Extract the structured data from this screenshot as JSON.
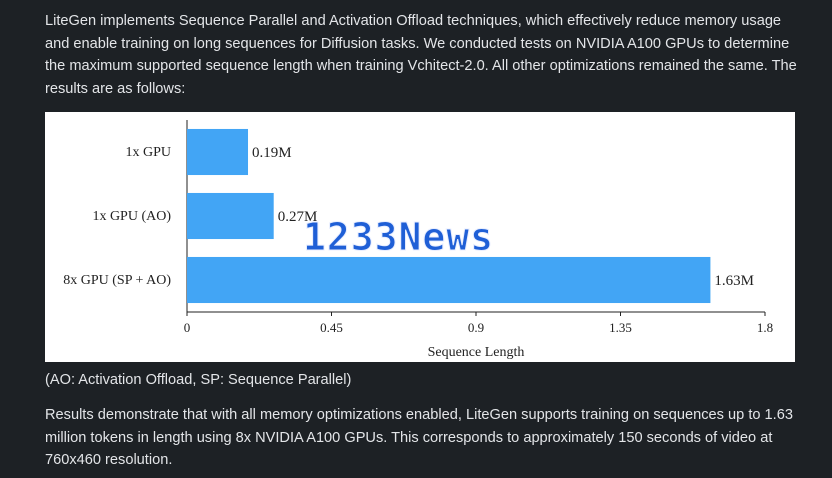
{
  "text": {
    "intro": "LiteGen implements Sequence Parallel and Activation Offload techniques, which effectively reduce memory usage and enable training on long sequences for Diffusion tasks. We conducted tests on NVIDIA A100 GPUs to determine the maximum supported sequence length when training Vchitect-2.0. All other optimizations remained the same. The results are as follows:",
    "caption": "(AO: Activation Offload, SP: Sequence Parallel)",
    "results": "Results demonstrate that with all memory optimizations enabled, LiteGen supports training on sequences up to 1.63 million tokens in length using 8x NVIDIA A100 GPUs. This corresponds to approximately 150 seconds of video at 760x460 resolution."
  },
  "watermark": "1233News",
  "colors": {
    "page_background": "#1d2125",
    "bar": "#42a5f5",
    "watermark": "#1f5fd6"
  },
  "chart_data": {
    "type": "bar",
    "orientation": "horizontal",
    "categories": [
      "1x GPU",
      "1x GPU (AO)",
      "8x GPU (SP + AO)"
    ],
    "values": [
      0.19,
      0.27,
      1.63
    ],
    "data_labels": [
      "0.19M",
      "0.27M",
      "1.63M"
    ],
    "xlabel": "Sequence Length",
    "ylabel": "",
    "xlim": [
      0,
      1.8
    ],
    "xticks": [
      0,
      0.45,
      0.9,
      1.35,
      1.8
    ],
    "xtick_labels": [
      "0",
      "0.45",
      "0.9",
      "1.35",
      "1.8"
    ],
    "grid": false,
    "legend": "none"
  }
}
